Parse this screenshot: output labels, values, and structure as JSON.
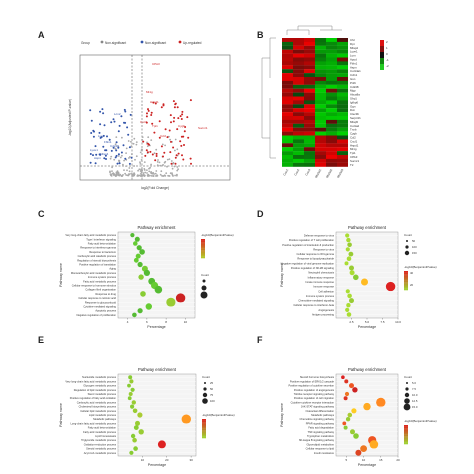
{
  "panels": {
    "A": {
      "letter": "A",
      "chart_data": {
        "type": "scatter",
        "legend": [
          "Group",
          "Non-significant",
          "Non-significant",
          "Up-regulated"
        ],
        "xlabel": "log2(Fold Change)",
        "ylabel": "-log10(Adjusted P-value)",
        "labels_up": [
          "CPA3",
          "Mt1g",
          "Hspd1",
          "Cxcl1",
          "Tpi1",
          "Cygb",
          "Sucnr1",
          "Ccl2",
          "Ttr"
        ],
        "labels_down": [
          "Lcn2",
          "Lum",
          "Fbln1",
          "Lyve1",
          "Mfap4",
          "Cd248",
          "Aspn"
        ]
      }
    },
    "B": {
      "letter": "B",
      "chart_data": {
        "type": "heatmap",
        "columns": [
          "Con1",
          "Con2",
          "Con3",
          "Model1",
          "Model2",
          "Model3"
        ],
        "rows": [
          "Cfd",
          "Dpt",
          "Mfap4",
          "Lyve1",
          "Lum",
          "Apod",
          "Fbln1",
          "Aspn",
          "Col14a1",
          "Ccl11",
          "Gsn",
          "Pi16",
          "Cd248",
          "Mgp",
          "Abca8a",
          "Sfrp1",
          "Igfbp6",
          "Ogn",
          "Dcn",
          "Clec3b",
          "Serpinf1",
          "Mfap5",
          "Col1a2",
          "Tnxb",
          "Cygb",
          "Ccl2",
          "Cxcl1",
          "Hspd1",
          "Mt1g",
          "Tpi1",
          "CPA3",
          "Sucnr1",
          "Ttr"
        ],
        "legend": [
          "2",
          "1",
          "0",
          "-1",
          "-2"
        ]
      }
    },
    "C": {
      "letter": "C",
      "chart_data": {
        "type": "scatter",
        "title": "Pathway enrichment",
        "xlabel": "Percentage",
        "ylabel": "Pathway name",
        "legend_color_title": "-log10(BenjaminiPvalue)",
        "legend_size_title": "Count",
        "categories": [
          "Very long-chain fatty acid metabolic process",
          "Type I interferon signaling",
          "Fatty acid beta-oxidation",
          "Response to interferon-gamma",
          "Response to bacterium",
          "Carboxylic acid catabolic process",
          "Regulation of steroid biosynthesis",
          "Positive regulation of translation",
          "Aging",
          "Monocarboxylic acid metabolic process",
          "Immune system process",
          "Fatty acid metabolic process",
          "Cellular response to hormone stimulus",
          "Collagen fibril organization",
          "Response to drug",
          "Cellular response to retinoic acid",
          "Response to glucocorticoid",
          "Cytokine-mediated signaling",
          "Apoptotic process",
          "Negative regulation of proliferation"
        ],
        "x": [
          4.5,
          5.0,
          4.8,
          5.2,
          5.5,
          5.1,
          4.9,
          5.3,
          5.8,
          6.0,
          5.4,
          6.5,
          6.8,
          7.2,
          5.6,
          9.5,
          8.5,
          6.2,
          5.3,
          4.7
        ],
        "colors": [
          "#55bb33",
          "#55bb33",
          "#66cc33",
          "#55bb33",
          "#55bb33",
          "#66cc33",
          "#66cc33",
          "#55bb33",
          "#77cc33",
          "#55bb33",
          "#88cc33",
          "#55bb33",
          "#66cc33",
          "#55bb33",
          "#88cc33",
          "#cc2222",
          "#99cc33",
          "#66cc33",
          "#55bb33",
          "#55bb33"
        ],
        "xlim": [
          3,
          11
        ],
        "xticks": [
          "4",
          "6",
          "8",
          "10"
        ]
      }
    },
    "D": {
      "letter": "D",
      "chart_data": {
        "type": "scatter",
        "title": "Pathway enrichment",
        "xlabel": "Percentage",
        "ylabel": "Pathway name",
        "legend_size_title": "Count",
        "legend_size_values": [
          "50",
          "100",
          "150"
        ],
        "legend_color_title": "-log10(BenjaminiPvalue)",
        "legend_color_values": [
          "40",
          "20"
        ],
        "categories": [
          "Defense response to virus",
          "Positive regulation of T cell proliferation",
          "Positive regulation of interleukin-6 production",
          "Response to virus",
          "Cellular response to IFN-gamma",
          "Response to lipopolysaccharide",
          "Negative regulation of viral genome replication",
          "Positive regulation of NF-kB signaling",
          "Neutrophil chemotaxis",
          "Inflammatory response",
          "Innate immune response",
          "Immune response",
          "Cell adhesion",
          "Immune system process",
          "Chemokine-mediated signaling",
          "Cellular response to interferon-beta",
          "Angiogenesis",
          "Antigen processing"
        ],
        "x": [
          1.8,
          2.0,
          2.2,
          1.9,
          2.4,
          2.1,
          1.7,
          2.5,
          2.6,
          3.2,
          4.6,
          8.8,
          1.9,
          2.2,
          2.5,
          2.0,
          1.8,
          2.1
        ],
        "colors": [
          "#aadd33",
          "#aadd33",
          "#99cc33",
          "#aadd33",
          "#99cc33",
          "#aadd33",
          "#aadd33",
          "#99cc33",
          "#aadd33",
          "#88cc33",
          "#ffbb22",
          "#dd2222",
          "#aadd33",
          "#aadd33",
          "#99cc33",
          "#aadd33",
          "#aadd33",
          "#aadd33"
        ],
        "xlim": [
          0,
          10
        ],
        "xticks": [
          "2.5",
          "5.0",
          "7.5",
          "10.0"
        ]
      }
    },
    "E": {
      "letter": "E",
      "chart_data": {
        "type": "scatter",
        "title": "Pathway enrichment",
        "xlabel": "Percentage",
        "ylabel": "Pathway name",
        "legend_size_title": "Count",
        "legend_size_values": [
          "25",
          "50",
          "75",
          "100"
        ],
        "legend_color_title": "-log10(BenjaminiPvalue)",
        "categories": [
          "Nucleotide metabolic process",
          "Very long-chain fatty acid metabolic process",
          "Glycogen metabolic process",
          "Regulation of lipid metabolic process",
          "Sterol metabolic process",
          "Positive regulation of fatty acid oxidation",
          "Carboxylic acid metabolic process",
          "Cholesterol biosynthetic process",
          "Cellular lipid metabolic process",
          "Lipid metabolic process",
          "Metabolic pathways",
          "Long-chain fatty acid metabolic process",
          "Fatty acid beta-oxidation",
          "Fatty acid metabolic process",
          "Lipid homeostasis",
          "Triglyceride metabolic process",
          "Oxidation-reduction process",
          "Steroid metabolic process",
          "Acyl-CoA metabolic process"
        ],
        "x": [
          5.0,
          5.5,
          4.5,
          6.0,
          5.2,
          4.8,
          6.5,
          5.8,
          7.0,
          9.0,
          28.0,
          8.0,
          7.5,
          9.5,
          6.2,
          6.8,
          18.0,
          7.2,
          5.5
        ],
        "colors": [
          "#88cc33",
          "#99cc33",
          "#88cc33",
          "#88cc33",
          "#99cc33",
          "#88cc33",
          "#99cc33",
          "#88cc33",
          "#99cc33",
          "#aacc33",
          "#ff9922",
          "#99cc33",
          "#88cc33",
          "#99cc33",
          "#88cc33",
          "#99cc33",
          "#dd2222",
          "#88cc33",
          "#88cc33"
        ],
        "xlim": [
          0,
          32
        ],
        "xticks": [
          "10",
          "20",
          "30"
        ]
      }
    },
    "F": {
      "letter": "F",
      "chart_data": {
        "type": "scatter",
        "title": "Pathway enrichment",
        "xlabel": "Percentage",
        "ylabel": "Pathway name",
        "legend_size_title": "Count",
        "legend_size_values": [
          "5.0",
          "7.5",
          "10.0",
          "12.5",
          "15.0"
        ],
        "legend_color_title": "-log10(BenjaminiPvalue)",
        "categories": [
          "Steroid hormone biosynthesis",
          "Positive regulation of ERK1/2 cascade",
          "Positive regulation of cytokine secretion",
          "Positive regulation of angiogenesis",
          "Toll-like receptor signaling pathway",
          "Positive regulation of cell migration",
          "Cytokine-cytokine receptor interaction",
          "JAK-STAT signaling pathway",
          "Osteoclast differentiation",
          "Metabolic pathways",
          "Chemokine signaling pathway",
          "PPAR signaling pathway",
          "Fatty acid degradation",
          "TNF signaling pathway",
          "Tryptophan metabolism",
          "NF-kappa B signaling pathway",
          "Glycerolipid metabolism",
          "Cellular response to lipid",
          "Insulin resistance"
        ],
        "x": [
          4.0,
          5.0,
          6.5,
          7.5,
          5.2,
          4.8,
          15.0,
          11.0,
          7.2,
          6.0,
          5.5,
          4.4,
          4.8,
          6.8,
          7.8,
          12.5,
          13.0,
          10.0,
          8.5
        ],
        "colors": [
          "#dd2222",
          "#dd3322",
          "#ee5522",
          "#cc2222",
          "#ee7722",
          "#dd3322",
          "#ff8822",
          "#ffaa22",
          "#ffcc22",
          "#aacc33",
          "#99cc33",
          "#ee5522",
          "#88cc33",
          "#99cc33",
          "#88cc33",
          "#ee5522",
          "#ffaa22",
          "#ee7722",
          "#dd4422"
        ],
        "xlim": [
          2,
          20
        ],
        "xticks": [
          "5",
          "10",
          "15",
          "20"
        ]
      }
    }
  }
}
